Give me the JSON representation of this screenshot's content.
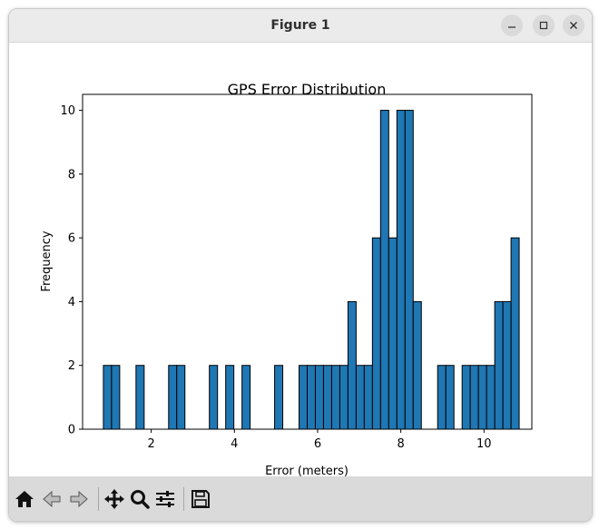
{
  "window": {
    "title": "Figure 1"
  },
  "toolbar": {
    "buttons": [
      "home-icon",
      "back-icon",
      "forward-icon",
      "pan-icon",
      "zoom-icon",
      "configure-subplots-icon",
      "save-icon"
    ]
  },
  "colors": {
    "bar_fill": "#1f77b4",
    "bar_edge": "#000000",
    "toolbar_bg": "#dadada",
    "titlebar_bg": "#ebebeb"
  },
  "chart_data": {
    "type": "bar",
    "title": "GPS Error Distribution",
    "xlabel": "Error (meters)",
    "ylabel": "Frequency",
    "xlim": [
      0.35,
      11.15
    ],
    "ylim": [
      0,
      10.5
    ],
    "xticks": [
      2,
      4,
      6,
      8,
      10
    ],
    "yticks": [
      0,
      2,
      4,
      6,
      8,
      10
    ],
    "bin_start": 0.85,
    "bin_width": 0.196,
    "values": [
      2,
      2,
      0,
      0,
      2,
      0,
      0,
      0,
      2,
      2,
      0,
      0,
      0,
      2,
      0,
      2,
      0,
      2,
      0,
      0,
      0,
      2,
      0,
      0,
      2,
      2,
      2,
      2,
      2,
      2,
      4,
      2,
      2,
      6,
      10,
      6,
      10,
      10,
      4,
      0,
      0,
      2,
      2,
      0,
      2,
      2,
      2,
      2,
      4,
      4,
      6
    ],
    "grid": false,
    "legend": "none"
  }
}
